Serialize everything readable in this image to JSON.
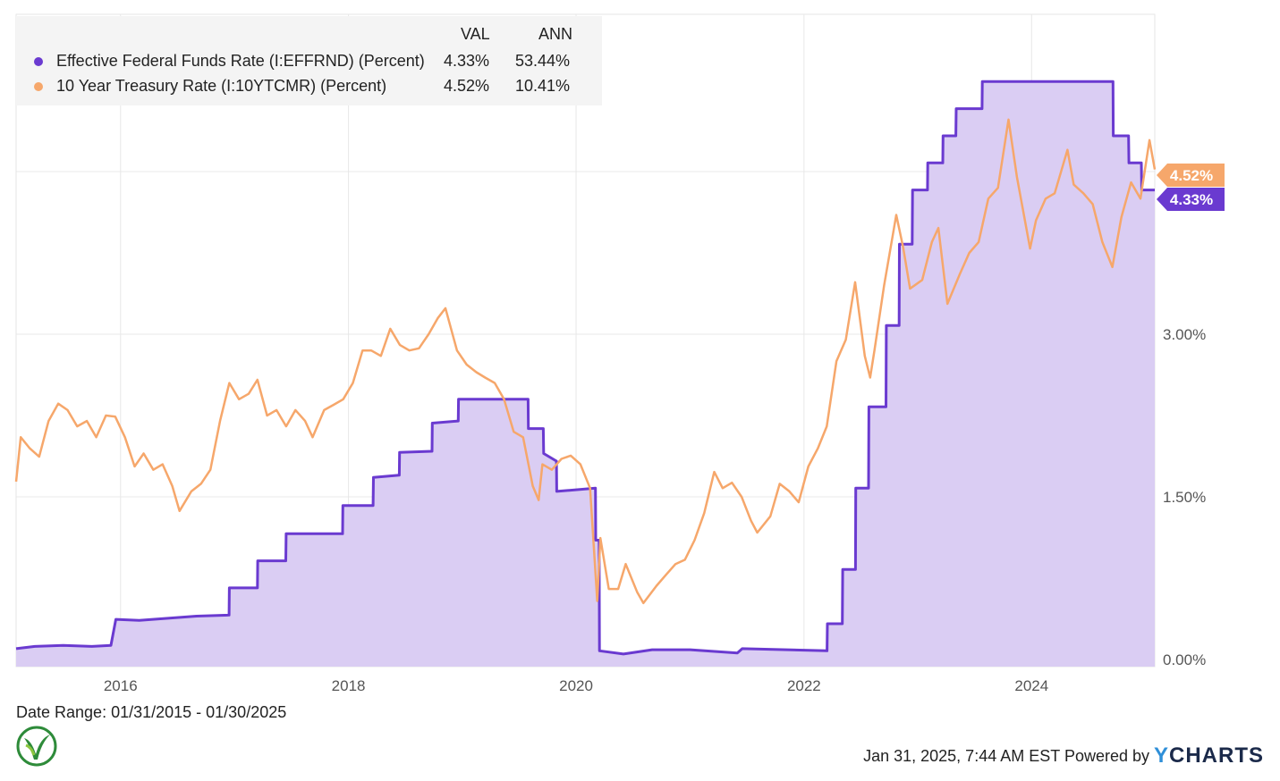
{
  "chart_data": {
    "type": "line",
    "title": "",
    "date_range_text": "Date Range: 01/31/2015 - 01/30/2025",
    "timestamp": "Jan 31, 2025, 7:44 AM EST",
    "powered_by": "Powered by",
    "brand": {
      "first": "Y",
      "rest": "CHARTS"
    },
    "legend": {
      "col_val": "VAL",
      "col_ann": "ANN",
      "placement": "top-left"
    },
    "x_range": [
      "2015-01-31",
      "2025-01-30"
    ],
    "x_ticks": [
      {
        "label": "2016",
        "date": "2016-01-01"
      },
      {
        "label": "2018",
        "date": "2018-01-01"
      },
      {
        "label": "2020",
        "date": "2020-01-01"
      },
      {
        "label": "2022",
        "date": "2022-01-01"
      },
      {
        "label": "2024",
        "date": "2024-01-01"
      }
    ],
    "y_ticks": [
      {
        "label": "0.00%",
        "value": 0.0
      },
      {
        "label": "1.50%",
        "value": 1.5
      },
      {
        "label": "3.00%",
        "value": 3.0
      }
    ],
    "ylim": [
      0,
      5.0
    ],
    "grid": true,
    "series": [
      {
        "name": "Effective Federal Funds Rate (I:EFFRND) (Percent)",
        "val": "4.33%",
        "ann": "53.44%",
        "end_label": "4.33%",
        "color": "#6a3ad0",
        "fill": "#dacdf3",
        "area": true,
        "points": [
          [
            "2015-01-31",
            0.1
          ],
          [
            "2015-04-01",
            0.12
          ],
          [
            "2015-07-01",
            0.13
          ],
          [
            "2015-10-01",
            0.12
          ],
          [
            "2015-12-01",
            0.13
          ],
          [
            "2015-12-17",
            0.37
          ],
          [
            "2016-03-01",
            0.36
          ],
          [
            "2016-06-01",
            0.38
          ],
          [
            "2016-09-01",
            0.4
          ],
          [
            "2016-12-14",
            0.41
          ],
          [
            "2016-12-15",
            0.66
          ],
          [
            "2017-03-15",
            0.66
          ],
          [
            "2017-03-16",
            0.91
          ],
          [
            "2017-06-14",
            0.91
          ],
          [
            "2017-06-15",
            1.16
          ],
          [
            "2017-12-13",
            1.16
          ],
          [
            "2017-12-14",
            1.42
          ],
          [
            "2018-03-21",
            1.42
          ],
          [
            "2018-03-22",
            1.68
          ],
          [
            "2018-06-13",
            1.7
          ],
          [
            "2018-06-14",
            1.91
          ],
          [
            "2018-09-26",
            1.92
          ],
          [
            "2018-09-27",
            2.18
          ],
          [
            "2018-12-19",
            2.2
          ],
          [
            "2018-12-20",
            2.4
          ],
          [
            "2019-07-31",
            2.4
          ],
          [
            "2019-08-01",
            2.13
          ],
          [
            "2019-09-18",
            2.13
          ],
          [
            "2019-09-19",
            1.9
          ],
          [
            "2019-10-30",
            1.83
          ],
          [
            "2019-10-31",
            1.55
          ],
          [
            "2020-03-03",
            1.58
          ],
          [
            "2020-03-04",
            1.1
          ],
          [
            "2020-03-15",
            1.1
          ],
          [
            "2020-03-16",
            0.08
          ],
          [
            "2020-06-01",
            0.05
          ],
          [
            "2020-09-01",
            0.09
          ],
          [
            "2021-01-01",
            0.09
          ],
          [
            "2021-06-01",
            0.06
          ],
          [
            "2021-06-17",
            0.1
          ],
          [
            "2022-03-16",
            0.08
          ],
          [
            "2022-03-17",
            0.33
          ],
          [
            "2022-05-04",
            0.33
          ],
          [
            "2022-05-05",
            0.83
          ],
          [
            "2022-06-15",
            0.83
          ],
          [
            "2022-06-16",
            1.58
          ],
          [
            "2022-07-27",
            1.58
          ],
          [
            "2022-07-28",
            2.33
          ],
          [
            "2022-09-21",
            2.33
          ],
          [
            "2022-09-22",
            3.08
          ],
          [
            "2022-11-02",
            3.08
          ],
          [
            "2022-11-03",
            3.83
          ],
          [
            "2022-12-14",
            3.83
          ],
          [
            "2022-12-15",
            4.33
          ],
          [
            "2023-02-01",
            4.33
          ],
          [
            "2023-02-02",
            4.58
          ],
          [
            "2023-03-22",
            4.58
          ],
          [
            "2023-03-23",
            4.83
          ],
          [
            "2023-05-03",
            4.83
          ],
          [
            "2023-05-04",
            5.08
          ],
          [
            "2023-07-26",
            5.08
          ],
          [
            "2023-07-27",
            5.33
          ],
          [
            "2024-09-18",
            5.33
          ],
          [
            "2024-09-19",
            4.83
          ],
          [
            "2024-11-07",
            4.83
          ],
          [
            "2024-11-08",
            4.58
          ],
          [
            "2024-12-18",
            4.58
          ],
          [
            "2024-12-19",
            4.33
          ],
          [
            "2025-01-30",
            4.33
          ]
        ]
      },
      {
        "name": "10 Year Treasury Rate (I:10YTCMR) (Percent)",
        "val": "4.52%",
        "ann": "10.41%",
        "end_label": "4.52%",
        "color": "#f6a76b",
        "area": false,
        "points": [
          [
            "2015-01-31",
            1.64
          ],
          [
            "2015-02-15",
            2.05
          ],
          [
            "2015-03-15",
            1.95
          ],
          [
            "2015-04-15",
            1.87
          ],
          [
            "2015-05-15",
            2.2
          ],
          [
            "2015-06-15",
            2.36
          ],
          [
            "2015-07-15",
            2.3
          ],
          [
            "2015-08-15",
            2.15
          ],
          [
            "2015-09-15",
            2.2
          ],
          [
            "2015-10-15",
            2.05
          ],
          [
            "2015-11-15",
            2.25
          ],
          [
            "2015-12-15",
            2.24
          ],
          [
            "2016-01-15",
            2.05
          ],
          [
            "2016-02-15",
            1.78
          ],
          [
            "2016-03-15",
            1.9
          ],
          [
            "2016-04-15",
            1.75
          ],
          [
            "2016-05-15",
            1.8
          ],
          [
            "2016-06-15",
            1.6
          ],
          [
            "2016-07-08",
            1.37
          ],
          [
            "2016-08-15",
            1.55
          ],
          [
            "2016-09-15",
            1.62
          ],
          [
            "2016-10-15",
            1.75
          ],
          [
            "2016-11-15",
            2.2
          ],
          [
            "2016-12-15",
            2.55
          ],
          [
            "2017-01-15",
            2.4
          ],
          [
            "2017-02-15",
            2.45
          ],
          [
            "2017-03-15",
            2.58
          ],
          [
            "2017-04-15",
            2.25
          ],
          [
            "2017-05-15",
            2.3
          ],
          [
            "2017-06-15",
            2.15
          ],
          [
            "2017-07-15",
            2.3
          ],
          [
            "2017-08-15",
            2.2
          ],
          [
            "2017-09-08",
            2.05
          ],
          [
            "2017-10-15",
            2.3
          ],
          [
            "2017-11-15",
            2.35
          ],
          [
            "2017-12-15",
            2.4
          ],
          [
            "2018-01-15",
            2.55
          ],
          [
            "2018-02-15",
            2.85
          ],
          [
            "2018-03-15",
            2.85
          ],
          [
            "2018-04-15",
            2.8
          ],
          [
            "2018-05-15",
            3.05
          ],
          [
            "2018-06-15",
            2.9
          ],
          [
            "2018-07-15",
            2.85
          ],
          [
            "2018-08-15",
            2.87
          ],
          [
            "2018-09-15",
            3.0
          ],
          [
            "2018-10-15",
            3.15
          ],
          [
            "2018-11-08",
            3.24
          ],
          [
            "2018-12-15",
            2.85
          ],
          [
            "2019-01-15",
            2.72
          ],
          [
            "2019-02-15",
            2.65
          ],
          [
            "2019-03-15",
            2.6
          ],
          [
            "2019-04-15",
            2.55
          ],
          [
            "2019-05-15",
            2.4
          ],
          [
            "2019-06-15",
            2.1
          ],
          [
            "2019-07-15",
            2.05
          ],
          [
            "2019-08-15",
            1.6
          ],
          [
            "2019-09-03",
            1.47
          ],
          [
            "2019-09-15",
            1.8
          ],
          [
            "2019-10-15",
            1.75
          ],
          [
            "2019-11-15",
            1.85
          ],
          [
            "2019-12-15",
            1.88
          ],
          [
            "2020-01-15",
            1.8
          ],
          [
            "2020-02-15",
            1.58
          ],
          [
            "2020-03-09",
            0.54
          ],
          [
            "2020-03-19",
            1.12
          ],
          [
            "2020-04-15",
            0.65
          ],
          [
            "2020-05-15",
            0.65
          ],
          [
            "2020-06-08",
            0.88
          ],
          [
            "2020-07-15",
            0.62
          ],
          [
            "2020-08-04",
            0.52
          ],
          [
            "2020-09-15",
            0.68
          ],
          [
            "2020-10-15",
            0.78
          ],
          [
            "2020-11-15",
            0.88
          ],
          [
            "2020-12-15",
            0.92
          ],
          [
            "2021-01-15",
            1.1
          ],
          [
            "2021-02-15",
            1.35
          ],
          [
            "2021-03-19",
            1.73
          ],
          [
            "2021-04-15",
            1.58
          ],
          [
            "2021-05-15",
            1.63
          ],
          [
            "2021-06-15",
            1.5
          ],
          [
            "2021-07-15",
            1.28
          ],
          [
            "2021-08-04",
            1.17
          ],
          [
            "2021-09-15",
            1.32
          ],
          [
            "2021-10-15",
            1.62
          ],
          [
            "2021-11-15",
            1.55
          ],
          [
            "2021-12-15",
            1.45
          ],
          [
            "2022-01-15",
            1.78
          ],
          [
            "2022-02-15",
            1.95
          ],
          [
            "2022-03-15",
            2.15
          ],
          [
            "2022-04-15",
            2.75
          ],
          [
            "2022-05-15",
            2.95
          ],
          [
            "2022-06-14",
            3.48
          ],
          [
            "2022-07-15",
            2.8
          ],
          [
            "2022-08-01",
            2.6
          ],
          [
            "2022-08-15",
            2.85
          ],
          [
            "2022-09-15",
            3.45
          ],
          [
            "2022-10-24",
            4.1
          ],
          [
            "2022-11-15",
            3.8
          ],
          [
            "2022-12-07",
            3.42
          ],
          [
            "2023-01-15",
            3.5
          ],
          [
            "2023-02-15",
            3.85
          ],
          [
            "2023-03-08",
            3.98
          ],
          [
            "2023-04-06",
            3.28
          ],
          [
            "2023-05-15",
            3.55
          ],
          [
            "2023-06-15",
            3.75
          ],
          [
            "2023-07-15",
            3.85
          ],
          [
            "2023-08-15",
            4.25
          ],
          [
            "2023-09-15",
            4.35
          ],
          [
            "2023-10-19",
            4.98
          ],
          [
            "2023-11-15",
            4.45
          ],
          [
            "2023-12-27",
            3.79
          ],
          [
            "2024-01-15",
            4.05
          ],
          [
            "2024-02-15",
            4.25
          ],
          [
            "2024-03-15",
            4.3
          ],
          [
            "2024-04-25",
            4.7
          ],
          [
            "2024-05-15",
            4.38
          ],
          [
            "2024-06-15",
            4.3
          ],
          [
            "2024-07-15",
            4.2
          ],
          [
            "2024-08-15",
            3.85
          ],
          [
            "2024-09-16",
            3.62
          ],
          [
            "2024-10-15",
            4.08
          ],
          [
            "2024-11-15",
            4.4
          ],
          [
            "2024-12-15",
            4.25
          ],
          [
            "2025-01-13",
            4.79
          ],
          [
            "2025-01-30",
            4.52
          ]
        ]
      }
    ]
  }
}
